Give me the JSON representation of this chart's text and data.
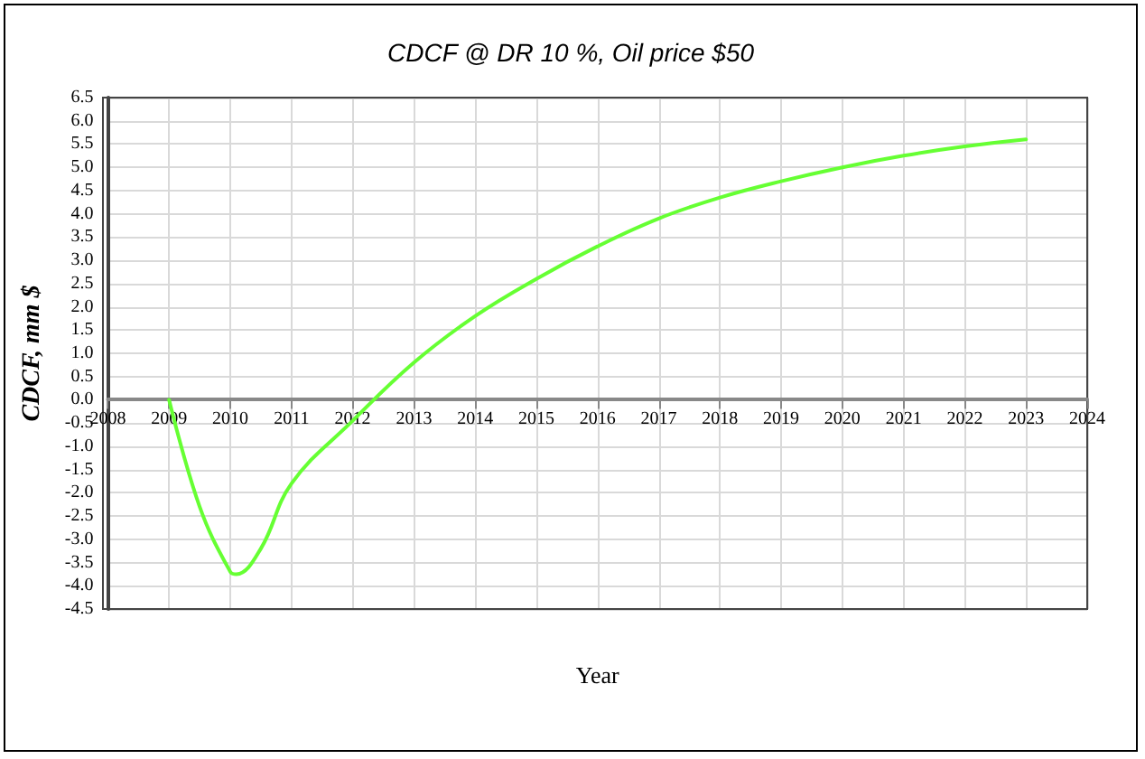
{
  "chart_data": {
    "type": "line",
    "title": "CDCF @ DR 10 %, Oil price $50",
    "xlabel": "Year",
    "ylabel": "CDCF, mm $",
    "x": [
      2009,
      2009.5,
      2010,
      2010.1,
      2010.5,
      2011,
      2012,
      2013,
      2014,
      2015,
      2016,
      2017,
      2018,
      2019,
      2020,
      2021,
      2022,
      2023
    ],
    "series": [
      {
        "color": "#66ff33",
        "values": [
          0,
          -2.3,
          -3.7,
          -3.75,
          -3.2,
          -1.8,
          -0.45,
          0.8,
          1.8,
          2.6,
          3.3,
          3.9,
          4.35,
          4.7,
          5.0,
          5.25,
          5.45,
          5.6
        ]
      }
    ],
    "xlim": [
      2008,
      2024
    ],
    "xticks": [
      2008,
      2009,
      2010,
      2011,
      2012,
      2013,
      2014,
      2015,
      2016,
      2017,
      2018,
      2019,
      2020,
      2021,
      2022,
      2023,
      2024
    ],
    "ylim": [
      -4.5,
      6.5
    ],
    "yticks": [
      -4.5,
      {
        "value": -4,
        "label": "-4.0"
      },
      -3.5,
      {
        "value": -3,
        "label": "-3.0"
      },
      -2.5,
      {
        "value": -2,
        "label": "-2.0"
      },
      -1.5,
      {
        "value": -1,
        "label": "-1.0"
      },
      -0.5,
      {
        "value": 0,
        "label": "0.0"
      },
      0.5,
      {
        "value": 1,
        "label": "1.0"
      },
      1.5,
      {
        "value": 2,
        "label": "2.0"
      },
      2.5,
      {
        "value": 3,
        "label": "3.0"
      },
      3.5,
      {
        "value": 4,
        "label": "4.0"
      },
      4.5,
      {
        "value": 5,
        "label": "5.0"
      },
      5.5,
      {
        "value": 6,
        "label": "6.0"
      },
      6.5
    ],
    "grid": true,
    "marker": "none",
    "line_style": "solid"
  }
}
